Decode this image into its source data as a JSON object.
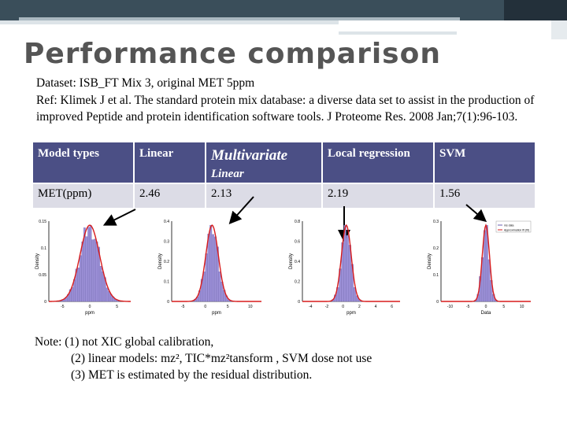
{
  "slide": {
    "title": "Performance comparison",
    "dataset": "Dataset: ISB_FT Mix 3, original MET 5ppm",
    "ref": "Ref: Klimek J et al. The standard protein mix database: a diverse data set to assist in the production of improved Peptide and protein identification software tools. J Proteome Res. 2008 Jan;7(1):96-103."
  },
  "table": {
    "headers": [
      "Model types",
      "Linear",
      "Multivariate",
      "Linear",
      "Local regression",
      "SVM"
    ],
    "row": [
      "MET(ppm)",
      "2.46",
      "2.13",
      "2.19",
      "1.56"
    ]
  },
  "plots": [
    {
      "ylabel": "Density",
      "xlabel": "ppm",
      "yticks": [
        "0.15",
        "0.1",
        "0.05",
        "0"
      ],
      "xticks": [
        "-5",
        "0",
        "5"
      ]
    },
    {
      "ylabel": "Density",
      "xlabel": "ppm",
      "yticks": [
        "0.4",
        "0.3",
        "0.2",
        "0.1",
        "0"
      ],
      "xticks": [
        "-5",
        "0",
        "5",
        "10"
      ]
    },
    {
      "ylabel": "Density",
      "xlabel": "ppm",
      "yticks": [
        "0.8",
        "0.6",
        "0.4",
        "0.2",
        "0"
      ],
      "xticks": [
        "-4",
        "-2",
        "0",
        "2",
        "4",
        "6"
      ]
    },
    {
      "ylabel": "Density",
      "xlabel": "Data",
      "yticks": [
        "0.3",
        "0.2",
        "0.1",
        "0"
      ],
      "xticks": [
        "-10",
        "-5",
        "0",
        "5",
        "10"
      ],
      "legend": [
        "ms data",
        "Approximation fit (fit)"
      ]
    }
  ],
  "note": {
    "line1": "Note: (1)  not XIC global calibration,",
    "line2": "(2) linear models: mz², TIC*mz²tansform  , SVM dose not use",
    "line3": "(3) MET is estimated by the residual distribution."
  },
  "colors": {
    "header_bg": "#4b4f85",
    "row_bg": "#dcdce6",
    "title": "#555555",
    "bars": "#9b8fd6",
    "curve": "#d81b1b"
  }
}
